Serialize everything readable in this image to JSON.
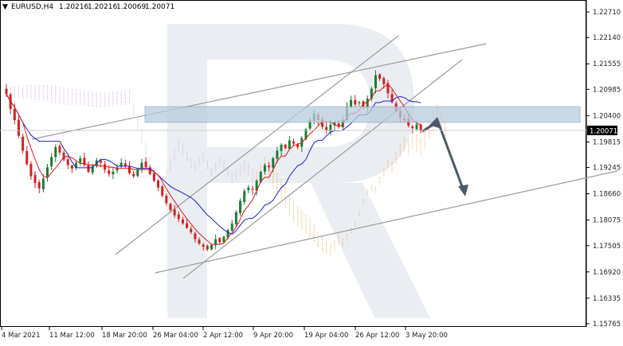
{
  "header": {
    "symbol": "EURUSD,H4",
    "open": "1.20216",
    "high": "1.20216",
    "low": "1.20069",
    "close": "1.20071"
  },
  "chart_data": {
    "type": "candlestick",
    "symbol": "EURUSD",
    "timeframe": "H4",
    "current_price": 1.20071,
    "y_ticks": [
      "1.22710",
      "1.22140",
      "1.21555",
      "1.20985",
      "1.20400",
      "1.19815",
      "1.19245",
      "1.18660",
      "1.18075",
      "1.17505",
      "1.16920",
      "1.16335",
      "1.15765"
    ],
    "ylim": [
      1.15765,
      1.2271
    ],
    "x_ticks": [
      "4 Mar 2021",
      "11 Mar 12:00",
      "18 Mar 20:00",
      "26 Mar 04:00",
      "2 Apr 12:00",
      "9 Apr 20:00",
      "19 Apr 04:00",
      "26 Apr 12:00",
      "3 May 20:00"
    ],
    "close_path": [
      [
        0,
        1.2088
      ],
      [
        1,
        1.2055
      ],
      [
        2,
        1.203
      ],
      [
        3,
        1.1995
      ],
      [
        4,
        1.1962
      ],
      [
        5,
        1.1932
      ],
      [
        6,
        1.1905
      ],
      [
        7,
        1.189
      ],
      [
        8,
        1.1878
      ],
      [
        9,
        1.19
      ],
      [
        10,
        1.1925
      ],
      [
        11,
        1.1948
      ],
      [
        12,
        1.197
      ],
      [
        13,
        1.1958
      ],
      [
        14,
        1.1942
      ],
      [
        15,
        1.193
      ],
      [
        16,
        1.1922
      ],
      [
        17,
        1.1935
      ],
      [
        18,
        1.1945
      ],
      [
        19,
        1.193
      ],
      [
        20,
        1.1915
      ],
      [
        21,
        1.1928
      ],
      [
        22,
        1.194
      ],
      [
        23,
        1.1935
      ],
      [
        24,
        1.192
      ],
      [
        25,
        1.191
      ],
      [
        26,
        1.1915
      ],
      [
        27,
        1.1925
      ],
      [
        28,
        1.1935
      ],
      [
        29,
        1.1928
      ],
      [
        30,
        1.1912
      ],
      [
        31,
        1.1905
      ],
      [
        32,
        1.192
      ],
      [
        33,
        1.1935
      ],
      [
        34,
        1.1925
      ],
      [
        35,
        1.191
      ],
      [
        36,
        1.1895
      ],
      [
        37,
        1.188
      ],
      [
        38,
        1.1862
      ],
      [
        39,
        1.1845
      ],
      [
        40,
        1.183
      ],
      [
        41,
        1.1818
      ],
      [
        42,
        1.181
      ],
      [
        43,
        1.18
      ],
      [
        44,
        1.179
      ],
      [
        45,
        1.178
      ],
      [
        46,
        1.1765
      ],
      [
        47,
        1.1755
      ],
      [
        48,
        1.1748
      ],
      [
        49,
        1.1742
      ],
      [
        50,
        1.1752
      ],
      [
        51,
        1.1765
      ],
      [
        52,
        1.1758
      ],
      [
        53,
        1.177
      ],
      [
        54,
        1.1785
      ],
      [
        55,
        1.18
      ],
      [
        56,
        1.1825
      ],
      [
        57,
        1.185
      ],
      [
        58,
        1.1872
      ],
      [
        59,
        1.188
      ],
      [
        60,
        1.1875
      ],
      [
        61,
        1.1895
      ],
      [
        62,
        1.1915
      ],
      [
        63,
        1.193
      ],
      [
        64,
        1.1925
      ],
      [
        65,
        1.1945
      ],
      [
        66,
        1.1962
      ],
      [
        67,
        1.1975
      ],
      [
        68,
        1.1968
      ],
      [
        69,
        1.1985
      ],
      [
        70,
        1.1978
      ],
      [
        71,
        1.197
      ],
      [
        72,
        1.199
      ],
      [
        73,
        1.201
      ],
      [
        74,
        1.203
      ],
      [
        75,
        1.2045
      ],
      [
        76,
        1.203
      ],
      [
        77,
        1.2015
      ],
      [
        78,
        1.2008
      ],
      [
        79,
        1.202
      ],
      [
        80,
        1.2025
      ],
      [
        81,
        1.2015
      ],
      [
        82,
        1.203
      ],
      [
        83,
        1.206
      ],
      [
        84,
        1.2075
      ],
      [
        85,
        1.2065
      ],
      [
        86,
        1.207
      ],
      [
        87,
        1.206
      ],
      [
        88,
        1.2078
      ],
      [
        89,
        1.21
      ],
      [
        90,
        1.213
      ],
      [
        91,
        1.2122
      ],
      [
        92,
        1.211
      ],
      [
        93,
        1.209
      ],
      [
        94,
        1.207
      ],
      [
        95,
        1.205
      ],
      [
        96,
        1.2035
      ],
      [
        97,
        1.203
      ],
      [
        98,
        1.2018
      ],
      [
        99,
        1.2012
      ],
      [
        100,
        1.202
      ],
      [
        101,
        1.2007
      ]
    ],
    "annotations": {
      "resistance_zone": [
        1.2025,
        1.206
      ],
      "forecast_path": [
        [
          1.2005,
          1.2035
        ],
        [
          1.2035,
          1.186
        ]
      ]
    }
  }
}
